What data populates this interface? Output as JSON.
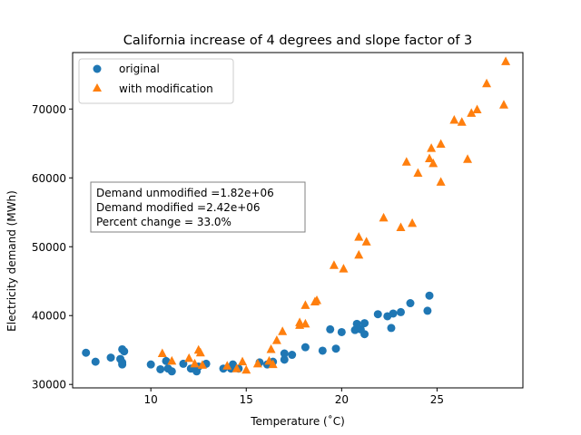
{
  "chart_data": {
    "type": "scatter",
    "title": "California increase of 4 degrees and slope factor of 3",
    "xlabel": "Temperature (˚C)",
    "ylabel": "Electricity demand (MWh)",
    "xlim": [
      5.9,
      29.5
    ],
    "ylim": [
      29500,
      78200
    ],
    "x_ticks": [
      10,
      15,
      20,
      25
    ],
    "x_tick_labels": [
      "10",
      "15",
      "20",
      "25"
    ],
    "y_ticks": [
      30000,
      40000,
      50000,
      60000,
      70000
    ],
    "y_tick_labels": [
      "30000",
      "40000",
      "50000",
      "60000",
      "70000"
    ],
    "grid": false,
    "legend_position": "top-left",
    "annotation": {
      "lines": [
        "Demand unmodified =1.82e+06",
        "Demand modified =2.42e+06",
        "Percent change = 33.0%"
      ]
    },
    "series": [
      {
        "name": "original",
        "marker": "circle",
        "color": "#1f77b4",
        "points": [
          [
            6.6,
            34600
          ],
          [
            7.1,
            33300
          ],
          [
            7.9,
            33900
          ],
          [
            8.4,
            33700
          ],
          [
            8.5,
            32900
          ],
          [
            8.5,
            33200
          ],
          [
            8.5,
            35100
          ],
          [
            8.6,
            34800
          ],
          [
            10.0,
            32900
          ],
          [
            10.5,
            32200
          ],
          [
            10.8,
            33400
          ],
          [
            10.9,
            32300
          ],
          [
            11.1,
            31900
          ],
          [
            11.7,
            33000
          ],
          [
            12.1,
            32300
          ],
          [
            12.4,
            31900
          ],
          [
            12.5,
            32600
          ],
          [
            12.9,
            33000
          ],
          [
            13.8,
            32300
          ],
          [
            14.2,
            32300
          ],
          [
            14.3,
            32900
          ],
          [
            14.6,
            32300
          ],
          [
            15.7,
            33200
          ],
          [
            16.1,
            32900
          ],
          [
            16.4,
            33300
          ],
          [
            17.0,
            33600
          ],
          [
            17.0,
            34500
          ],
          [
            17.4,
            34300
          ],
          [
            18.1,
            35400
          ],
          [
            19.0,
            34900
          ],
          [
            19.4,
            38000
          ],
          [
            19.7,
            35200
          ],
          [
            20.0,
            37600
          ],
          [
            20.7,
            37900
          ],
          [
            20.8,
            38800
          ],
          [
            21.0,
            38000
          ],
          [
            21.2,
            38900
          ],
          [
            21.2,
            37300
          ],
          [
            21.9,
            40200
          ],
          [
            22.4,
            39900
          ],
          [
            22.6,
            38200
          ],
          [
            22.7,
            40300
          ],
          [
            23.1,
            40500
          ],
          [
            23.6,
            41800
          ],
          [
            24.5,
            40700
          ],
          [
            24.6,
            42900
          ]
        ]
      },
      {
        "name": "with modification",
        "marker": "triangle",
        "color": "#ff7f0e",
        "points": [
          [
            10.6,
            34500
          ],
          [
            11.1,
            33400
          ],
          [
            12.0,
            33800
          ],
          [
            12.3,
            33000
          ],
          [
            12.5,
            35000
          ],
          [
            12.6,
            34600
          ],
          [
            12.7,
            32800
          ],
          [
            14.0,
            32700
          ],
          [
            14.5,
            32300
          ],
          [
            14.8,
            33300
          ],
          [
            15.0,
            32100
          ],
          [
            15.6,
            33000
          ],
          [
            16.2,
            33400
          ],
          [
            16.3,
            35100
          ],
          [
            16.4,
            32900
          ],
          [
            16.6,
            36400
          ],
          [
            16.9,
            37700
          ],
          [
            17.8,
            38600
          ],
          [
            17.8,
            39000
          ],
          [
            18.1,
            38800
          ],
          [
            18.1,
            41500
          ],
          [
            18.6,
            42000
          ],
          [
            18.7,
            42200
          ],
          [
            19.6,
            47300
          ],
          [
            20.1,
            46800
          ],
          [
            20.9,
            48800
          ],
          [
            20.9,
            51400
          ],
          [
            21.3,
            50700
          ],
          [
            22.2,
            54200
          ],
          [
            23.1,
            52800
          ],
          [
            23.4,
            62300
          ],
          [
            23.7,
            53400
          ],
          [
            24.0,
            60700
          ],
          [
            24.6,
            62800
          ],
          [
            24.7,
            64300
          ],
          [
            24.8,
            62100
          ],
          [
            25.2,
            64900
          ],
          [
            25.2,
            59400
          ],
          [
            25.9,
            68400
          ],
          [
            26.3,
            68100
          ],
          [
            26.6,
            62700
          ],
          [
            26.8,
            69400
          ],
          [
            27.1,
            69900
          ],
          [
            27.6,
            73700
          ],
          [
            28.5,
            70600
          ],
          [
            28.6,
            76900
          ]
        ]
      }
    ]
  }
}
